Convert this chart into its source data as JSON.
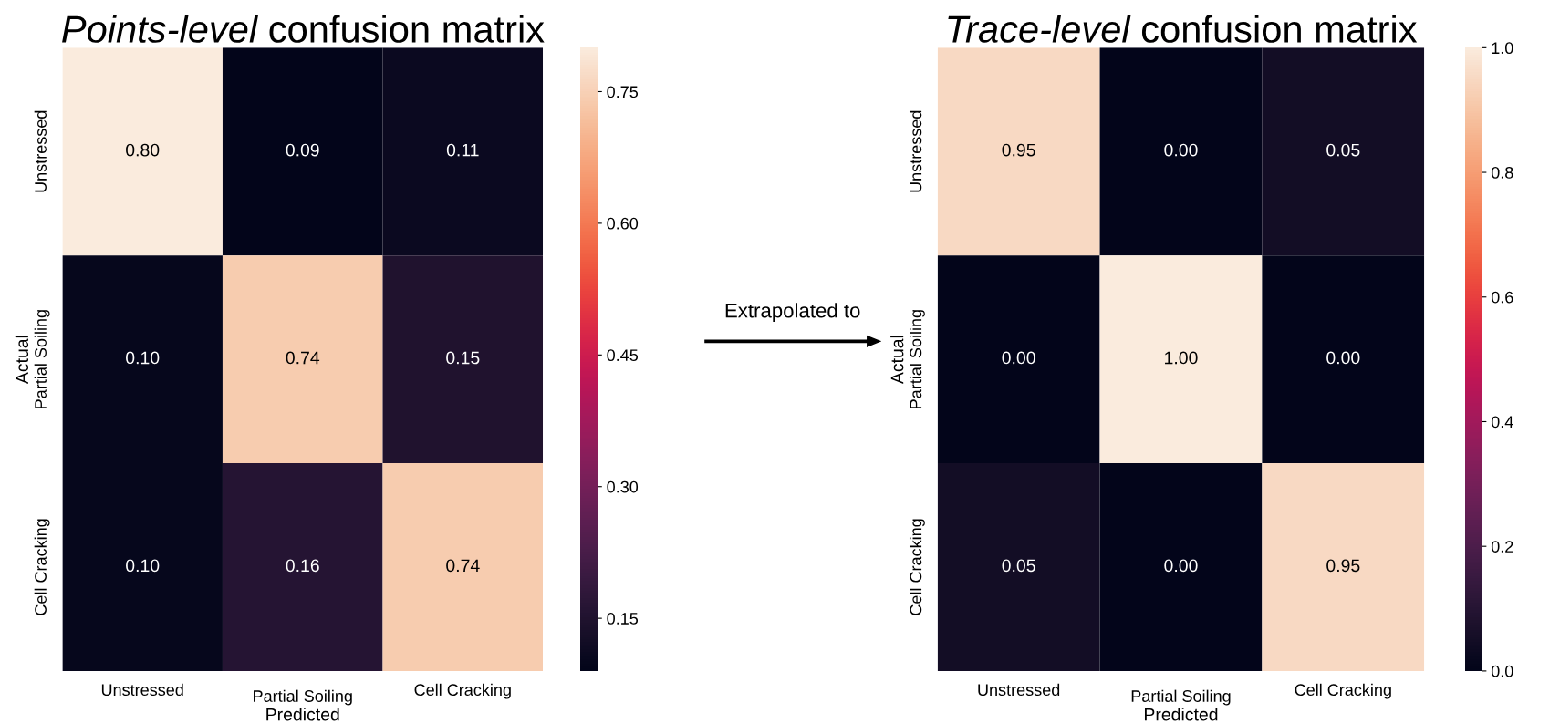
{
  "chart_data": [
    {
      "type": "heatmap",
      "title": "Points-level confusion matrix",
      "xlabel": "Predicted",
      "ylabel": "Actual",
      "categories": [
        "Unstressed",
        "Partial Soiling",
        "Cell Cracking"
      ],
      "y_categories": [
        "Unstressed",
        "Partial Soiling",
        "Cell Cracking"
      ],
      "cells": [
        [
          0.8,
          0.09,
          0.11
        ],
        [
          0.1,
          0.74,
          0.15
        ],
        [
          0.1,
          0.16,
          0.74
        ]
      ],
      "cell_labels": [
        [
          "0.80",
          "0.09",
          "0.11"
        ],
        [
          "0.10",
          "0.74",
          "0.15"
        ],
        [
          "0.10",
          "0.16",
          "0.74"
        ]
      ],
      "clim": [
        0.09,
        0.8
      ],
      "cticks": [
        {
          "value": 0.15,
          "label": "0.15"
        },
        {
          "value": 0.3,
          "label": "0.30"
        },
        {
          "value": 0.45,
          "label": "0.45"
        },
        {
          "value": 0.6,
          "label": "0.60"
        },
        {
          "value": 0.75,
          "label": "0.75"
        }
      ],
      "annotations": [
        "Extrapolated to"
      ]
    },
    {
      "type": "heatmap",
      "title": "Trace-level confusion matrix",
      "xlabel": "Predicted",
      "ylabel": "Actual",
      "categories": [
        "Unstressed",
        "Partial Soiling",
        "Cell Cracking"
      ],
      "y_categories": [
        "Unstressed",
        "Partial Soiling",
        "Cell Cracking"
      ],
      "cells": [
        [
          0.95,
          0.0,
          0.05
        ],
        [
          0.0,
          1.0,
          0.0
        ],
        [
          0.05,
          0.0,
          0.95
        ]
      ],
      "cell_labels": [
        [
          "0.95",
          "0.00",
          "0.05"
        ],
        [
          "0.00",
          "1.00",
          "0.00"
        ],
        [
          "0.05",
          "0.00",
          "0.95"
        ]
      ],
      "clim": [
        0,
        1
      ],
      "cticks": [
        {
          "value": 0,
          "label": "0.0"
        },
        {
          "value": 0.2,
          "label": "0.2"
        },
        {
          "value": 0.4,
          "label": "0.4"
        },
        {
          "value": 0.6,
          "label": "0.6"
        },
        {
          "value": 0.8,
          "label": "0.8"
        },
        {
          "value": 1,
          "label": "1.0"
        }
      ]
    }
  ]
}
